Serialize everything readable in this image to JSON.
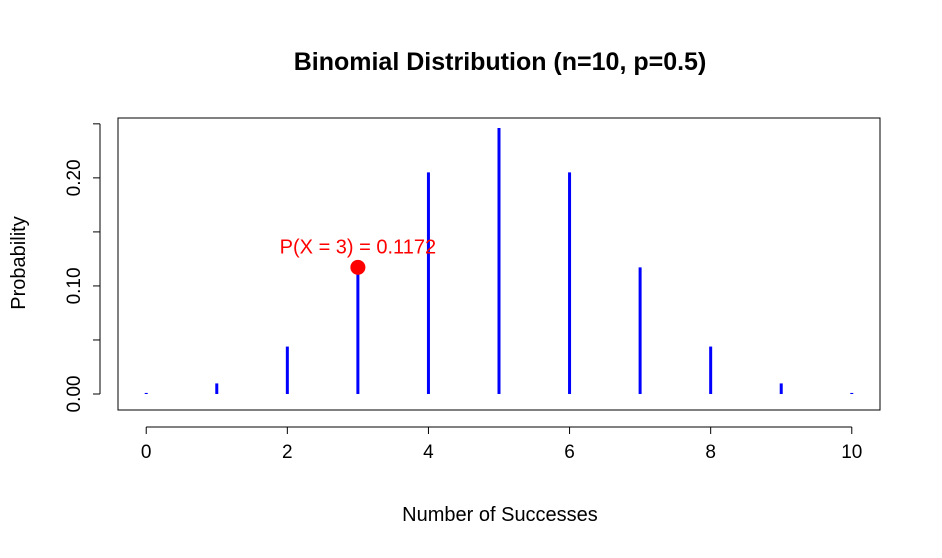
{
  "chart_data": {
    "type": "bar",
    "title": "Binomial Distribution (n=10, p=0.5)",
    "xlabel": "Number of Successes",
    "ylabel": "Probability",
    "x": [
      0,
      1,
      2,
      3,
      4,
      5,
      6,
      7,
      8,
      9,
      10
    ],
    "values": [
      0.001,
      0.0098,
      0.0439,
      0.1172,
      0.2051,
      0.2461,
      0.2051,
      0.1172,
      0.0439,
      0.0098,
      0.001
    ],
    "xlim": [
      -0.4,
      10.4
    ],
    "ylim": [
      -0.0148,
      0.2554
    ],
    "x_ticks": [
      "0",
      "2",
      "4",
      "6",
      "8",
      "10"
    ],
    "x_tick_values": [
      0,
      2,
      4,
      6,
      8,
      10
    ],
    "y_ticks": [
      "0.00",
      "0.10",
      "0.20"
    ],
    "y_tick_values": [
      0.0,
      0.1,
      0.2
    ],
    "y_minor_tick_values": [
      0.05,
      0.15,
      0.25
    ],
    "grid": false,
    "bar_color": "#0000ff",
    "highlight": {
      "x": 3,
      "y": 0.1172,
      "label": "P(X = 3) = 0.1172",
      "color": "#ff0000"
    }
  }
}
